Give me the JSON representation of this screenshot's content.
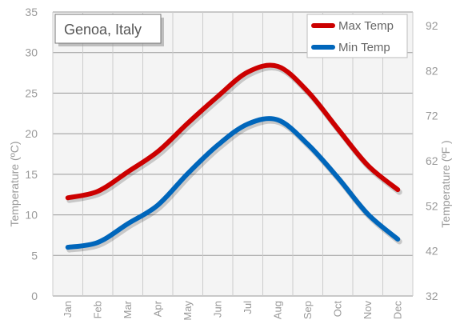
{
  "chart_data": {
    "type": "line",
    "title": "Genoa, Italy",
    "categories": [
      "Jan",
      "Feb",
      "Mar",
      "Apr",
      "May",
      "Jun",
      "Jul",
      "Aug",
      "Sep",
      "Oct",
      "Nov",
      "Dec"
    ],
    "series": [
      {
        "name": "Max Temp",
        "color": "#cc0000",
        "values": [
          12.1,
          12.9,
          15.3,
          17.8,
          21.3,
          24.6,
          27.6,
          28.3,
          25.2,
          20.6,
          16.1,
          13.1
        ]
      },
      {
        "name": "Min Temp",
        "color": "#0066bb",
        "values": [
          6.0,
          6.6,
          8.9,
          11.2,
          15.1,
          18.6,
          21.2,
          21.7,
          18.7,
          14.6,
          10.1,
          7.0
        ]
      }
    ],
    "ylabel_left": "Temperature (ºC)",
    "ylabel_right": "Temperature (ºF )",
    "ylim": [
      0,
      35
    ],
    "yticks_left": [
      0,
      5,
      10,
      15,
      20,
      25,
      30,
      35
    ],
    "yticks_right": [
      32,
      42,
      52,
      62,
      72,
      82,
      92
    ],
    "grid": true,
    "legend_position": "top-right"
  }
}
